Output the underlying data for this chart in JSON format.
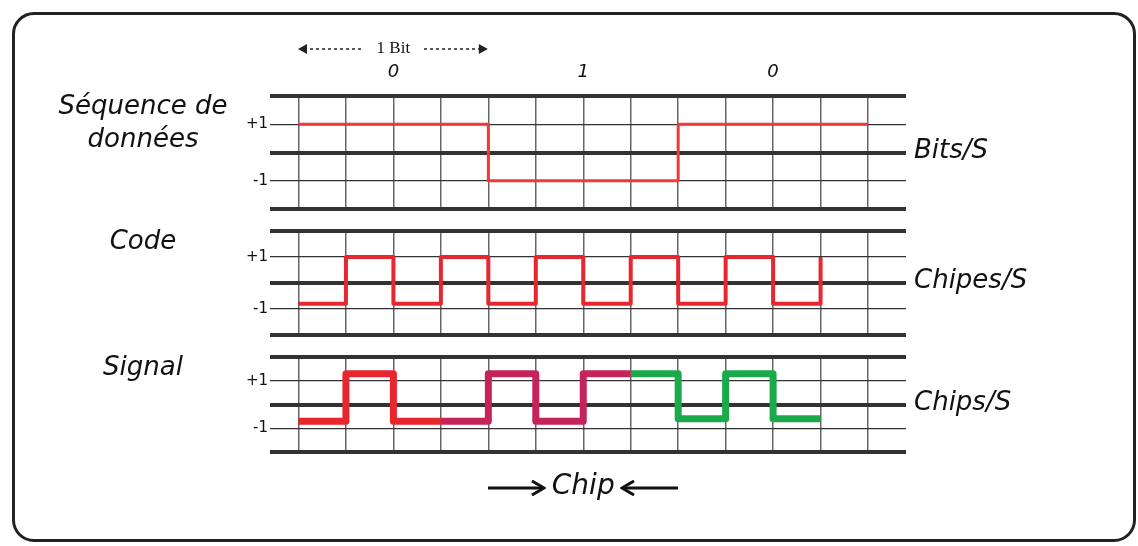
{
  "chart_data": [
    {
      "type": "step",
      "ylabel": "Séquence de données",
      "y2label": "Bits/S",
      "annotations": [
        "1 Bit",
        "0",
        "1",
        "0"
      ],
      "categories": [
        null,
        null,
        null,
        null,
        null,
        null,
        null,
        null,
        null,
        null,
        null,
        null,
        null
      ],
      "ylim": [
        -2,
        2
      ],
      "yticks": [
        {
          "value": -2,
          "label": null
        },
        {
          "value": -1,
          "label": "-1"
        },
        {
          "value": 0,
          "label": null
        },
        {
          "value": 1,
          "label": "+1"
        },
        {
          "value": 2,
          "label": null
        }
      ],
      "grid": true,
      "series": [
        {
          "color": "#f03a3a",
          "values": [
            1,
            1,
            1,
            1,
            -1,
            -1,
            -1,
            -1,
            1,
            1,
            1,
            1,
            1
          ]
        }
      ]
    },
    {
      "type": "step",
      "ylabel": "Code",
      "y2label": "Chipes/S",
      "categories": [
        null,
        null,
        null,
        null,
        null,
        null,
        null,
        null,
        null,
        null,
        null,
        null,
        null
      ],
      "ylim": [
        -2,
        2
      ],
      "yticks": [
        {
          "value": -2,
          "label": null
        },
        {
          "value": -1,
          "label": "-1"
        },
        {
          "value": 0,
          "label": null
        },
        {
          "value": 1,
          "label": "+1"
        },
        {
          "value": 2,
          "label": null
        }
      ],
      "grid": true,
      "series": [
        {
          "color": "#e8262e",
          "values": [
            -0.8,
            1,
            -0.8,
            1,
            -0.8,
            1,
            -0.8,
            1,
            -0.8,
            1,
            -0.8,
            1,
            null
          ]
        }
      ]
    },
    {
      "type": "step",
      "ylabel": "Signal",
      "y2label": "Chips/S",
      "annotations": [
        "Chip"
      ],
      "categories": [
        null,
        null,
        null,
        null,
        null,
        null,
        null,
        null,
        null,
        null,
        null,
        null,
        null
      ],
      "ylim": [
        -2,
        2
      ],
      "yticks": [
        {
          "value": -2,
          "label": null
        },
        {
          "value": -1,
          "label": "-1"
        },
        {
          "value": 0,
          "label": null
        },
        {
          "value": 1,
          "label": "+1"
        },
        {
          "value": 2,
          "label": null
        }
      ],
      "grid": true,
      "series": [
        {
          "color": "#e8262e",
          "values": [
            -0.7,
            1.3,
            -0.7,
            -0.7,
            null,
            null,
            null,
            null,
            null,
            null,
            null,
            null,
            null
          ]
        },
        {
          "color": "#c4245a",
          "values": [
            null,
            null,
            null,
            -0.7,
            1.3,
            -0.7,
            1.3,
            1.3,
            null,
            null,
            null,
            null,
            null
          ]
        },
        {
          "color": "#1aaa4a",
          "values": [
            null,
            null,
            null,
            null,
            null,
            null,
            null,
            1.3,
            -0.6,
            1.3,
            -0.6,
            -0.6,
            null
          ]
        }
      ]
    }
  ]
}
